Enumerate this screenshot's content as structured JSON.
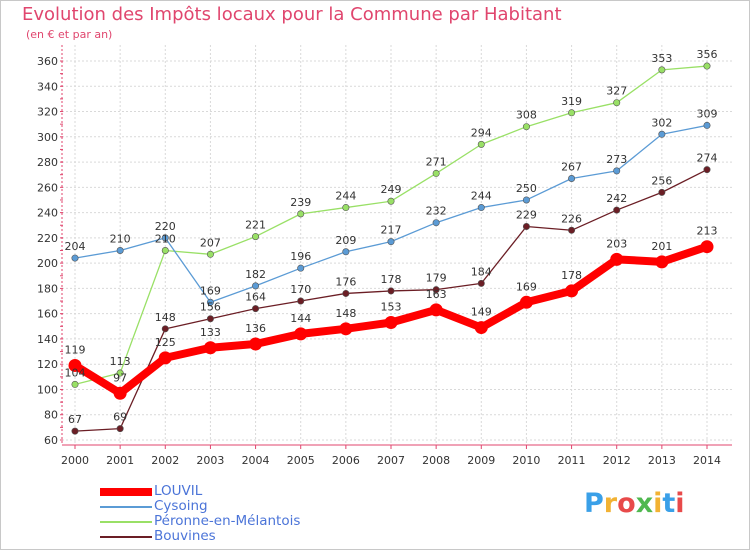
{
  "chart_data": {
    "type": "line",
    "title": "Evolution des Impôts locaux pour la Commune par Habitant",
    "subtitle": "(en € et par an)",
    "xlabel": "",
    "ylabel": "",
    "ylim": [
      60,
      360
    ],
    "ytick_step": 20,
    "grid": true,
    "legend_position": "bottom-left",
    "x": [
      2000,
      2001,
      2002,
      2003,
      2004,
      2005,
      2006,
      2007,
      2008,
      2009,
      2010,
      2011,
      2012,
      2013,
      2014
    ],
    "series": [
      {
        "name": "LOUVIL",
        "color": "#ff0000",
        "values": [
          119,
          97,
          125,
          133,
          136,
          144,
          148,
          153,
          163,
          149,
          169,
          178,
          203,
          201,
          213
        ]
      },
      {
        "name": "Cysoing",
        "color": "#5b9bd5",
        "values": [
          204,
          210,
          220,
          169,
          182,
          196,
          209,
          217,
          232,
          244,
          250,
          267,
          273,
          302,
          309
        ]
      },
      {
        "name": "Péronne-en-Mélantois",
        "color": "#99e066",
        "values": [
          104,
          113,
          210,
          207,
          221,
          239,
          244,
          249,
          271,
          294,
          308,
          319,
          327,
          353,
          356
        ]
      },
      {
        "name": "Bouvines",
        "color": "#6b1e25",
        "values": [
          67,
          69,
          148,
          156,
          164,
          170,
          176,
          178,
          179,
          184,
          229,
          226,
          242,
          256,
          274
        ]
      }
    ]
  },
  "logo": {
    "letters": [
      "P",
      "r",
      "o",
      "x",
      "i",
      "t",
      "i"
    ],
    "colors": [
      "#3aa0e8",
      "#f2b233",
      "#e84a4a",
      "#4fb84f",
      "#f2b233",
      "#3aa0e8",
      "#e84a4a"
    ]
  }
}
